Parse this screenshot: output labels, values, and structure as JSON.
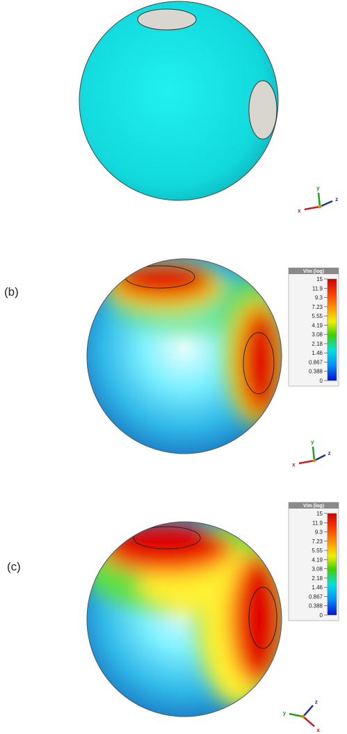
{
  "panels": [
    {
      "triad": {
        "x": "x",
        "y": "y",
        "z": "z"
      }
    },
    {
      "label": "(b)",
      "colorbar": {
        "title": "V/m (log)",
        "ticks": [
          "15",
          "11.9",
          "9.3",
          "7.23",
          "5.55",
          "4.19",
          "3.08",
          "2.18",
          "1.46",
          "0.867",
          "0.388",
          "0"
        ]
      },
      "triad": {
        "x": "x",
        "y": "y",
        "z": "z"
      }
    },
    {
      "label": "(c)",
      "colorbar": {
        "title": "V/m (log)",
        "ticks": [
          "15",
          "11.9",
          "9.3",
          "7.23",
          "5.55",
          "4.19",
          "3.08",
          "2.18",
          "1.46",
          "0.867",
          "0.388",
          "0"
        ]
      },
      "triad": {
        "x": "x",
        "y": "y",
        "z": "z"
      }
    }
  ]
}
